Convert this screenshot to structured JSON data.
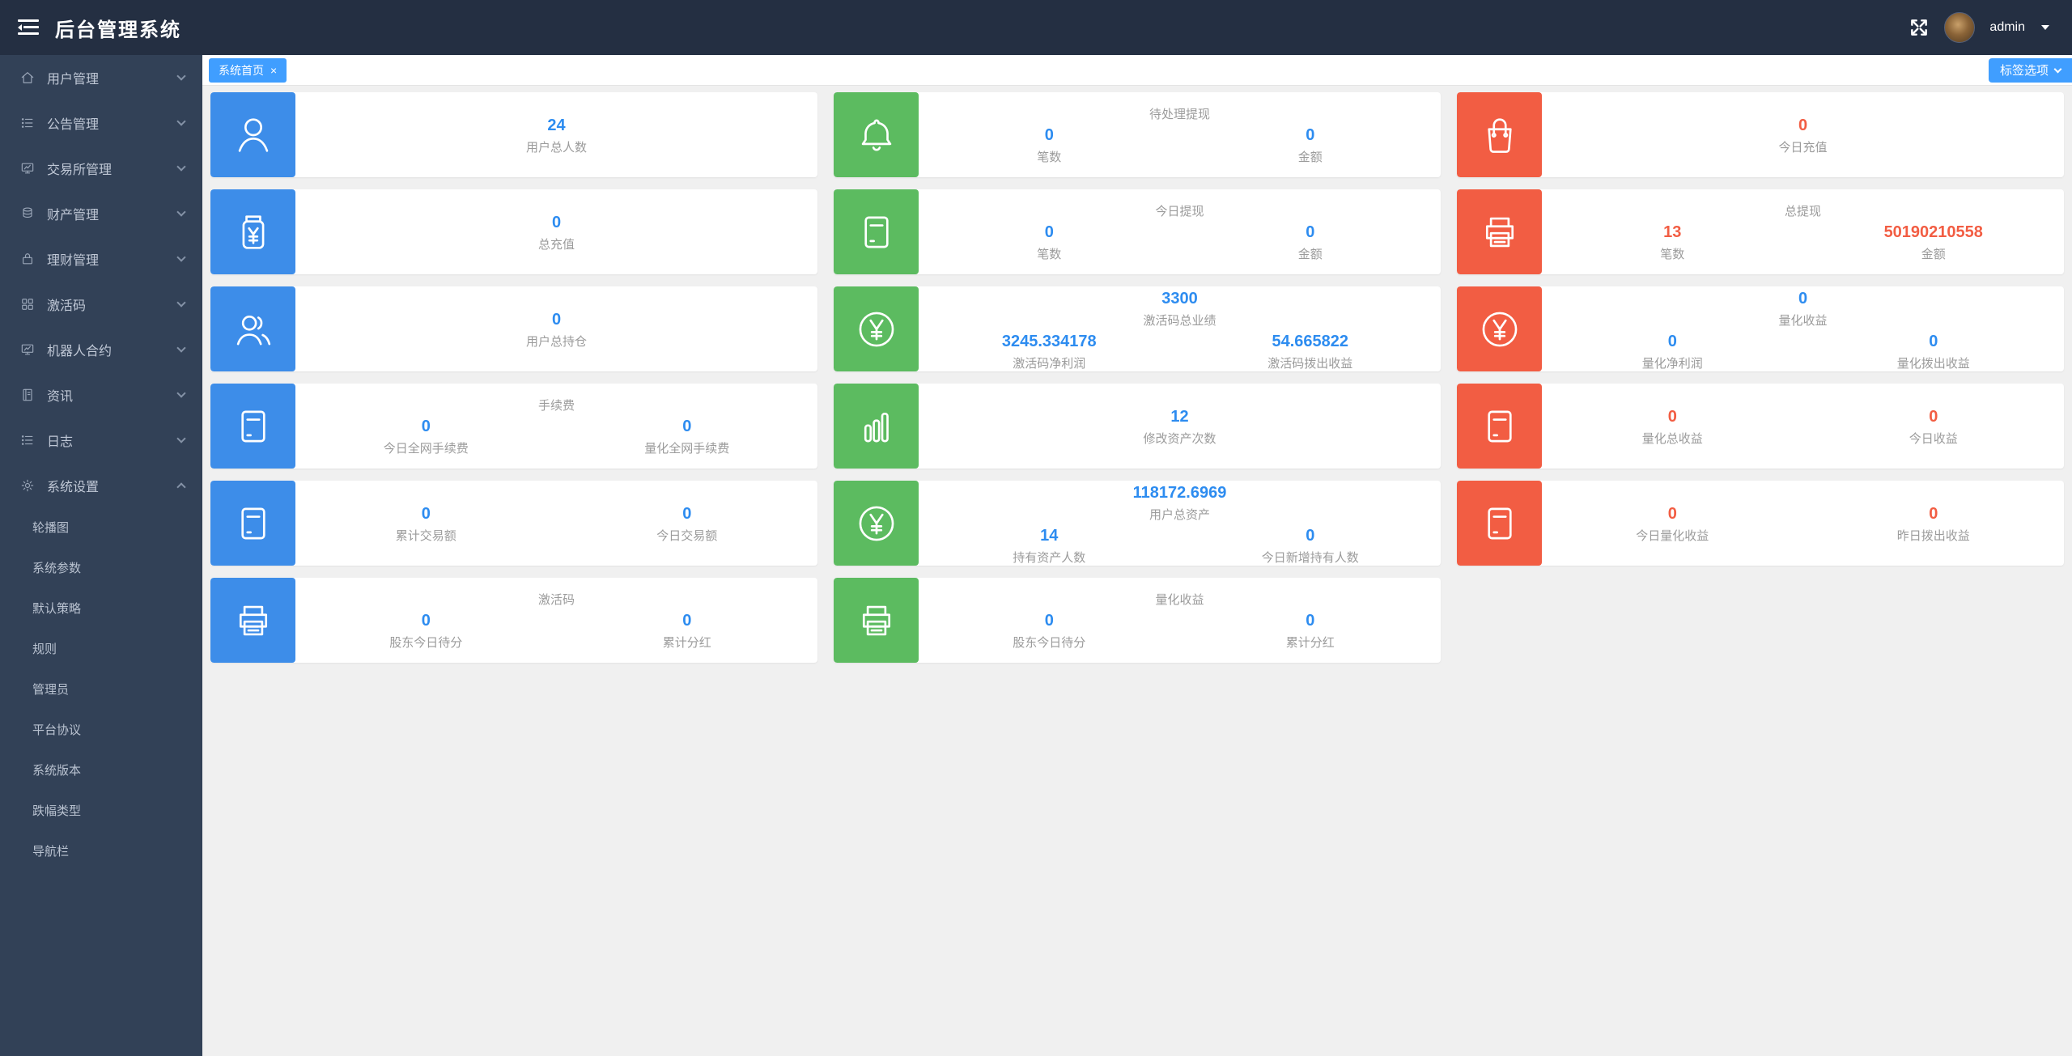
{
  "app": {
    "title": "后台管理系统",
    "user_name": "admin"
  },
  "tabbar": {
    "active_tab": "系统首页",
    "close_label": "×",
    "options_button": "标签选项"
  },
  "sidebar": {
    "items": [
      {
        "label": "用户管理",
        "icon": "home-icon",
        "state": "collapsed"
      },
      {
        "label": "公告管理",
        "icon": "list-icon",
        "state": "collapsed"
      },
      {
        "label": "交易所管理",
        "icon": "board-icon",
        "state": "collapsed"
      },
      {
        "label": "财产管理",
        "icon": "database-icon",
        "state": "collapsed"
      },
      {
        "label": "理财管理",
        "icon": "bag-icon",
        "state": "collapsed"
      },
      {
        "label": "激活码",
        "icon": "grid-icon",
        "state": "collapsed"
      },
      {
        "label": "机器人合约",
        "icon": "board-icon",
        "state": "collapsed"
      },
      {
        "label": "资讯",
        "icon": "doc-icon",
        "state": "collapsed"
      },
      {
        "label": "日志",
        "icon": "list-icon",
        "state": "collapsed"
      },
      {
        "label": "系统设置",
        "icon": "gear-icon",
        "state": "expanded",
        "children": [
          "轮播图",
          "系统参数",
          "默认策略",
          "规则",
          "管理员",
          "平台协议",
          "系统版本",
          "跌幅类型",
          "导航栏"
        ]
      }
    ]
  },
  "colors": {
    "header_bg": "#242f42",
    "sidebar_bg": "#324157",
    "accent_blue": "#409eff",
    "card_blue": "#3d8de9",
    "card_green": "#5cbb60",
    "card_red": "#f25d43",
    "value_blue": "#2d8cf0",
    "value_red": "#f25d43",
    "label_gray": "#9b9b9b"
  },
  "cards": [
    {
      "icon": "user-icon",
      "color": "blue",
      "stats": [
        {
          "value": "24",
          "label": "用户总人数",
          "color": "blue"
        }
      ]
    },
    {
      "icon": "bell-icon",
      "color": "green",
      "title": "待处理提现",
      "stats": [
        {
          "value": "0",
          "label": "笔数",
          "color": "blue"
        },
        {
          "value": "0",
          "label": "金额",
          "color": "blue"
        }
      ]
    },
    {
      "icon": "shopping-bag-icon",
      "color": "red",
      "stats": [
        {
          "value": "0",
          "label": "今日充值",
          "color": "red"
        }
      ]
    },
    {
      "icon": "money-jar-icon",
      "color": "blue",
      "stats": [
        {
          "value": "0",
          "label": "总充值",
          "color": "blue"
        }
      ]
    },
    {
      "icon": "card-icon",
      "color": "green",
      "title": "今日提现",
      "stats": [
        {
          "value": "0",
          "label": "笔数",
          "color": "blue"
        },
        {
          "value": "0",
          "label": "金额",
          "color": "blue"
        }
      ]
    },
    {
      "icon": "printer-icon",
      "color": "red",
      "title": "总提现",
      "stats": [
        {
          "value": "13",
          "label": "笔数",
          "color": "red"
        },
        {
          "value": "50190210558",
          "label": "金额",
          "color": "red"
        }
      ]
    },
    {
      "icon": "users-icon",
      "color": "blue",
      "stats": [
        {
          "value": "0",
          "label": "用户总持仓",
          "color": "blue"
        }
      ]
    },
    {
      "icon": "yen-circle-icon",
      "color": "green",
      "primary": {
        "value": "3300",
        "label": "激活码总业绩",
        "color": "blue"
      },
      "stats": [
        {
          "value": "3245.334178",
          "label": "激活码净利润",
          "color": "blue"
        },
        {
          "value": "54.665822",
          "label": "激活码拨出收益",
          "color": "blue"
        }
      ]
    },
    {
      "icon": "yen-circle-icon",
      "color": "red",
      "primary": {
        "value": "0",
        "label": "量化收益",
        "color": "blue"
      },
      "stats": [
        {
          "value": "0",
          "label": "量化净利润",
          "color": "blue"
        },
        {
          "value": "0",
          "label": "量化拨出收益",
          "color": "blue"
        }
      ]
    },
    {
      "icon": "card-icon",
      "color": "blue",
      "title": "手续费",
      "stats": [
        {
          "value": "0",
          "label": "今日全网手续费",
          "color": "blue"
        },
        {
          "value": "0",
          "label": "量化全网手续费",
          "color": "blue"
        }
      ]
    },
    {
      "icon": "bar-chart-icon",
      "color": "green",
      "stats": [
        {
          "value": "12",
          "label": "修改资产次数",
          "color": "blue"
        }
      ]
    },
    {
      "icon": "card-icon",
      "color": "red",
      "stats": [
        {
          "value": "0",
          "label": "量化总收益",
          "color": "red"
        },
        {
          "value": "0",
          "label": "今日收益",
          "color": "red"
        }
      ]
    },
    {
      "icon": "card-icon",
      "color": "blue",
      "stats": [
        {
          "value": "0",
          "label": "累计交易额",
          "color": "blue"
        },
        {
          "value": "0",
          "label": "今日交易额",
          "color": "blue"
        }
      ]
    },
    {
      "icon": "yen-circle-icon",
      "color": "green",
      "primary": {
        "value": "118172.6969",
        "label": "用户总资产",
        "color": "blue"
      },
      "stats": [
        {
          "value": "14",
          "label": "持有资产人数",
          "color": "blue"
        },
        {
          "value": "0",
          "label": "今日新增持有人数",
          "color": "blue"
        }
      ]
    },
    {
      "icon": "card-icon",
      "color": "red",
      "stats": [
        {
          "value": "0",
          "label": "今日量化收益",
          "color": "red"
        },
        {
          "value": "0",
          "label": "昨日拨出收益",
          "color": "red"
        }
      ]
    },
    {
      "icon": "printer-icon",
      "color": "blue",
      "title": "激活码",
      "stats": [
        {
          "value": "0",
          "label": "股东今日待分",
          "color": "blue"
        },
        {
          "value": "0",
          "label": "累计分红",
          "color": "blue"
        }
      ]
    },
    {
      "icon": "printer-icon",
      "color": "green",
      "title": "量化收益",
      "stats": [
        {
          "value": "0",
          "label": "股东今日待分",
          "color": "blue"
        },
        {
          "value": "0",
          "label": "累计分红",
          "color": "blue"
        }
      ]
    }
  ]
}
